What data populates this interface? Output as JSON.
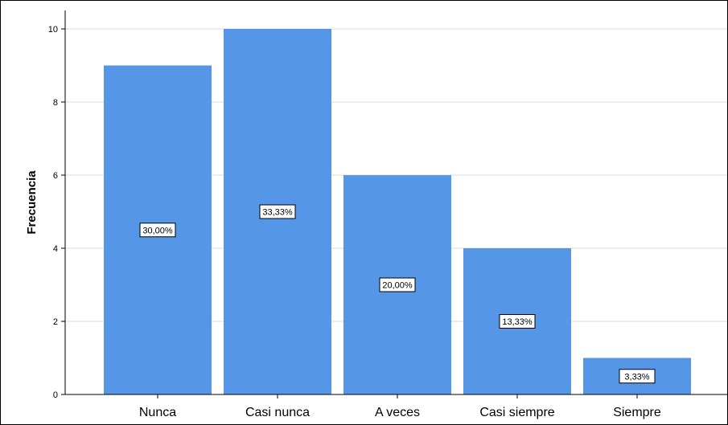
{
  "chart_data": {
    "type": "bar",
    "categories": [
      "Nunca",
      "Casi nunca",
      "A veces",
      "Casi siempre",
      "Siempre"
    ],
    "values": [
      9,
      10,
      6,
      4,
      1
    ],
    "data_labels": [
      "30,00%",
      "33,33%",
      "20,00%",
      "13,33%",
      "3,33%"
    ],
    "title": "",
    "xlabel": "",
    "ylabel": "Frecuencia",
    "ylim": [
      0,
      10
    ],
    "yticks": [
      "0",
      "2",
      "4",
      "6",
      "8",
      "10"
    ],
    "grid": true,
    "legend": "none"
  },
  "colors": {
    "bar": "#5596e6",
    "grid": "#d9d9d9",
    "axis": "#000000"
  }
}
